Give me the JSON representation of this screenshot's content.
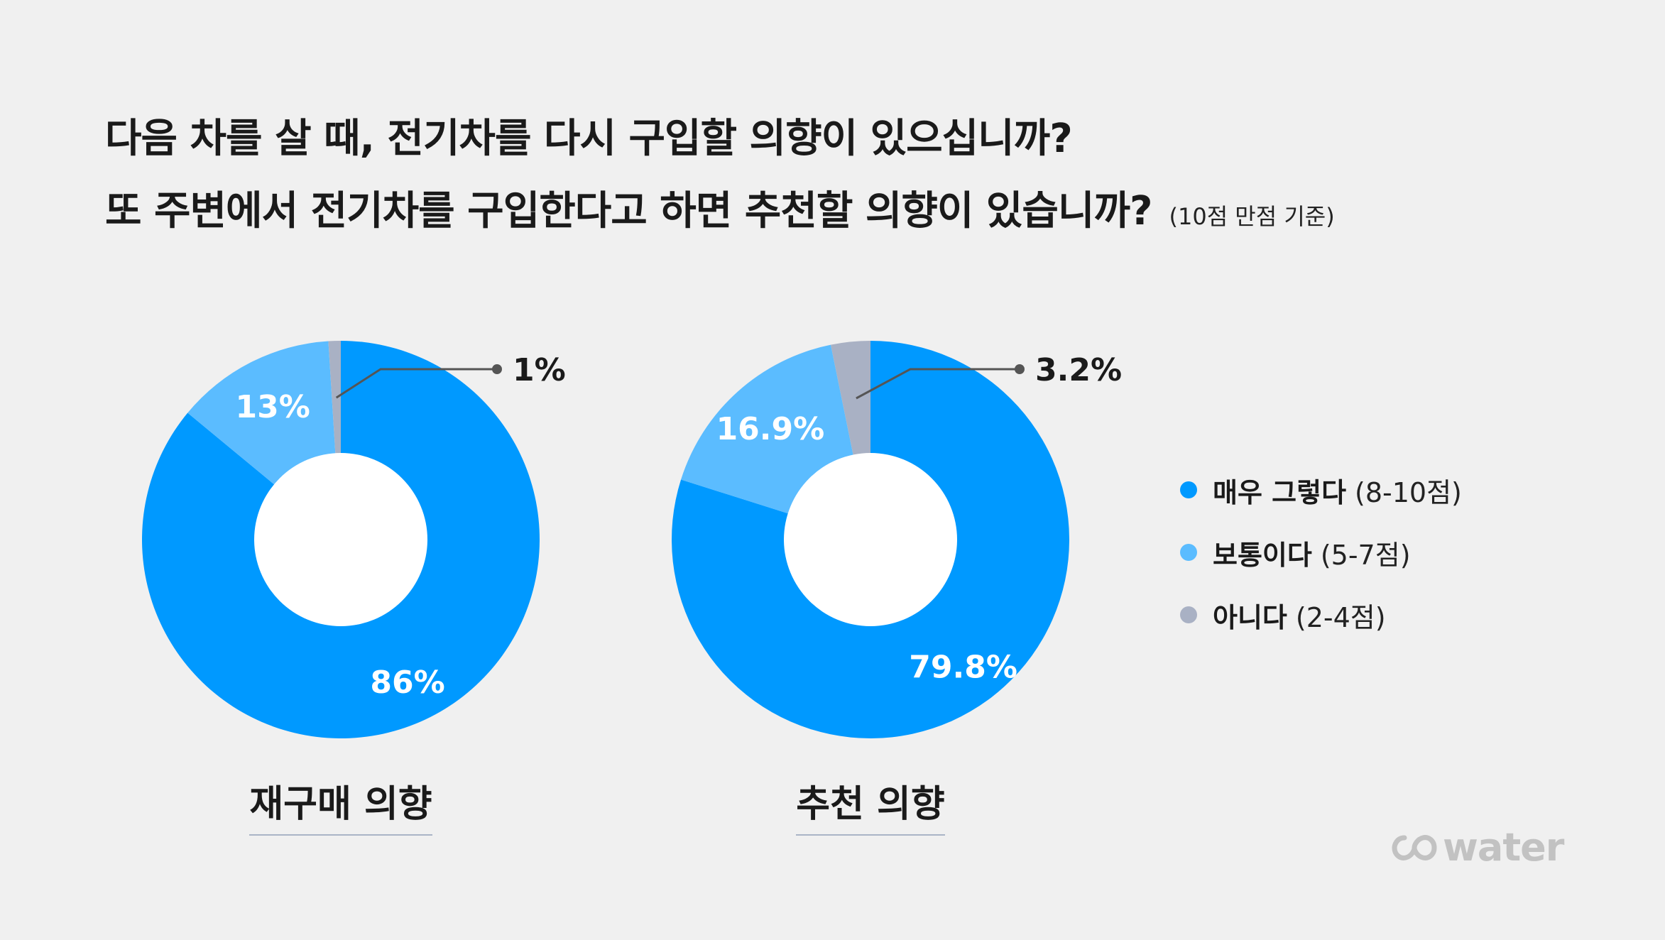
{
  "header": {
    "line1": "다음 차를 살 때, 전기차를 다시 구입할 의향이 있으십니까?",
    "line2": "또 주변에서 전기차를 구입한다고 하면 추천할 의향이 있습니까?",
    "note": "(10점 만점 기준)"
  },
  "colors": {
    "very_likely": "#0099ff",
    "neutral": "#5bbcff",
    "unlikely": "#a9b1c4",
    "leader": "#555555"
  },
  "legend": [
    {
      "label": "매우 그렇다",
      "range": "(8-10점)",
      "color": "#0099ff"
    },
    {
      "label": "보통이다",
      "range": "(5-7점)",
      "color": "#5bbcff"
    },
    {
      "label": "아니다",
      "range": "(2-4점)",
      "color": "#a9b1c4"
    }
  ],
  "brand": {
    "name": "water",
    "icon": "infinity-logo-icon"
  },
  "chart_data": [
    {
      "type": "pie",
      "variant": "donut",
      "title": "재구매 의향",
      "categories": [
        "매우 그렇다",
        "보통이다",
        "아니다"
      ],
      "values": [
        86,
        13,
        1
      ],
      "labels": [
        "86%",
        "13%",
        "1%"
      ]
    },
    {
      "type": "pie",
      "variant": "donut",
      "title": "추천 의향",
      "categories": [
        "매우 그렇다",
        "보통이다",
        "아니다"
      ],
      "values": [
        79.8,
        16.9,
        3.2
      ],
      "labels": [
        "79.8%",
        "16.9%",
        "3.2%"
      ]
    }
  ]
}
